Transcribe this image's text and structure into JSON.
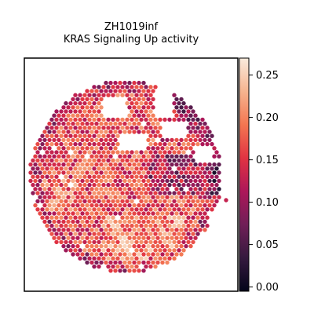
{
  "chart_data": {
    "type": "heatmap",
    "title_line1": "ZH1019inf",
    "title_line2": "KRAS Signaling Up activity",
    "xlabel": "",
    "ylabel": "",
    "colorbar": {
      "colormap": "rocket",
      "range": [
        -0.005,
        0.27
      ],
      "ticks": [
        0.0,
        0.05,
        0.1,
        0.15,
        0.2,
        0.25
      ],
      "tick_labels": [
        "0.00",
        "0.05",
        "0.10",
        "0.15",
        "0.20",
        "0.25"
      ]
    },
    "spot_value_range": [
      0.0,
      0.27
    ],
    "colormap_stops": [
      "#03051a",
      "#35193e",
      "#701f57",
      "#ad1759",
      "#e13342",
      "#f37651",
      "#f6b48f",
      "#faebdd"
    ],
    "grid": false,
    "axes_ticks": false
  }
}
